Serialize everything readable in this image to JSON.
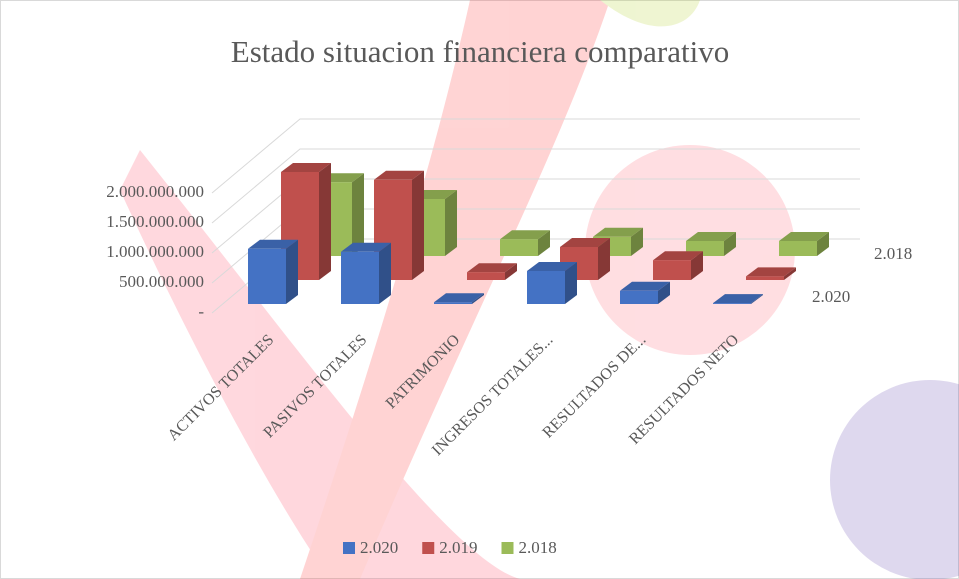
{
  "chart_data": {
    "type": "bar3d",
    "title": "Estado situacion financiera comparativo",
    "categories": [
      "ACTIVOS TOTALES",
      "PASIVOS TOTALES",
      "PATRIMONIO",
      "INGRESOS TOTALES...",
      "RESULTADOS DE...",
      "RESULTADOS NETO"
    ],
    "series": [
      {
        "name": "2.020",
        "color": "#4472c4",
        "values": [
          920000000,
          870000000,
          30000000,
          550000000,
          220000000,
          15000000
        ]
      },
      {
        "name": "2.019",
        "color": "#c0504d",
        "values": [
          1800000000,
          1670000000,
          130000000,
          550000000,
          330000000,
          60000000
        ]
      },
      {
        "name": "2.018",
        "color": "#9bbb59",
        "values": [
          1230000000,
          950000000,
          280000000,
          320000000,
          250000000,
          250000000
        ]
      }
    ],
    "depth_labels": [
      "2.020",
      null,
      "2.018"
    ],
    "ylim": [
      0,
      2000000000
    ],
    "yticks": [
      {
        "value": 0,
        "label": "-"
      },
      {
        "value": 500000000,
        "label": "500.000.000"
      },
      {
        "value": 1000000000,
        "label": "1.000.000.000"
      },
      {
        "value": 1500000000,
        "label": "1.500.000.000"
      },
      {
        "value": 2000000000,
        "label": "2.000.000.000"
      }
    ],
    "grid": true,
    "legend": "bottom"
  }
}
